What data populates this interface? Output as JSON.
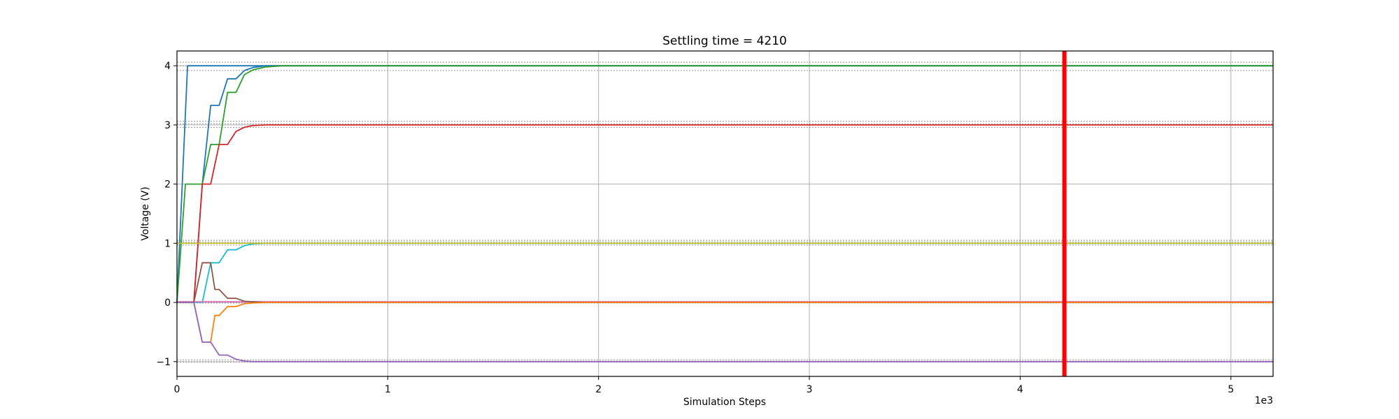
{
  "chart_data": {
    "type": "line",
    "title": "Settling time = 4210",
    "xlabel": "Simulation Steps",
    "ylabel": "Voltage (V)",
    "x_offset_label": "1e3",
    "xlim": [
      0,
      5.2
    ],
    "ylim": [
      -1.25,
      4.25
    ],
    "x_ticks": [
      0,
      1,
      2,
      3,
      4,
      5
    ],
    "y_ticks": [
      -1,
      0,
      1,
      2,
      3,
      4
    ],
    "grid": true,
    "settling_marker": {
      "x": 4.21,
      "color": "#ff0000"
    },
    "tolerance_bands": [
      {
        "value": 4.06,
        "color": "#888888"
      },
      {
        "value": 4.0,
        "color": "#888888"
      },
      {
        "value": 3.92,
        "color": "#888888"
      },
      {
        "value": 3.06,
        "color": "#888888"
      },
      {
        "value": 3.02,
        "color": "#888888"
      },
      {
        "value": 2.96,
        "color": "#888888"
      },
      {
        "value": 1.05,
        "color": "#888888"
      },
      {
        "value": 1.02,
        "color": "#888888"
      },
      {
        "value": 0.97,
        "color": "#888888"
      },
      {
        "value": 0.02,
        "color": "#888888"
      },
      {
        "value": -0.01,
        "color": "#888888"
      },
      {
        "value": -0.97,
        "color": "#888888"
      },
      {
        "value": -1.01,
        "color": "#888888"
      }
    ],
    "series": [
      {
        "color": "#1f77b4",
        "x": [
          0,
          0.05,
          5.2
        ],
        "y": [
          0,
          4.0,
          4.0
        ]
      },
      {
        "color": "#1f77b4",
        "x": [
          0,
          0.08,
          0.12,
          0.16,
          0.2,
          0.24,
          0.28,
          0.32,
          0.36,
          0.42,
          0.5,
          5.2
        ],
        "y": [
          0,
          0,
          2.0,
          3.33,
          3.33,
          3.78,
          3.78,
          3.92,
          3.97,
          4.0,
          4.0,
          4.0
        ]
      },
      {
        "color": "#2ca02c",
        "x": [
          0,
          0.04,
          0.12,
          0.16,
          0.2,
          0.24,
          0.28,
          0.32,
          0.36,
          0.42,
          0.5,
          5.2
        ],
        "y": [
          0,
          2.0,
          2.0,
          2.67,
          2.67,
          3.55,
          3.55,
          3.85,
          3.93,
          3.98,
          4.0,
          4.0
        ]
      },
      {
        "color": "#d62728",
        "x": [
          0,
          0.08,
          0.12,
          0.16,
          0.2,
          0.24,
          0.28,
          0.32,
          0.36,
          0.42,
          0.5,
          5.2
        ],
        "y": [
          0,
          0,
          2.0,
          2.0,
          2.67,
          2.67,
          2.89,
          2.96,
          2.99,
          3.0,
          3.0,
          3.0
        ]
      },
      {
        "color": "#17becf",
        "x": [
          0,
          0.12,
          0.16,
          0.2,
          0.24,
          0.28,
          0.32,
          0.36,
          0.42,
          0.5,
          5.2
        ],
        "y": [
          0,
          0,
          0.67,
          0.67,
          0.89,
          0.89,
          0.96,
          0.99,
          1.0,
          1.0,
          1.0
        ]
      },
      {
        "color": "#bcbd22",
        "x": [
          0,
          0.5,
          5.2
        ],
        "y": [
          1.0,
          1.0,
          1.0
        ]
      },
      {
        "color": "#e377c2",
        "x": [
          0,
          0.5,
          5.2
        ],
        "y": [
          0.01,
          0.01,
          0.01
        ]
      },
      {
        "color": "#8c564b",
        "x": [
          0,
          0.08,
          0.12,
          0.16,
          0.18,
          0.2,
          0.24,
          0.28,
          0.32,
          0.36,
          0.42,
          0.5,
          5.2
        ],
        "y": [
          0,
          0,
          0.67,
          0.67,
          0.22,
          0.22,
          0.07,
          0.07,
          0.02,
          0.01,
          0,
          0,
          0
        ]
      },
      {
        "color": "#ff7f0e",
        "x": [
          0,
          0.08,
          0.12,
          0.16,
          0.18,
          0.2,
          0.24,
          0.28,
          0.32,
          0.36,
          0.42,
          0.5,
          5.2
        ],
        "y": [
          0,
          0,
          -0.67,
          -0.67,
          -0.22,
          -0.22,
          -0.07,
          -0.07,
          -0.02,
          -0.01,
          0,
          0,
          0
        ]
      },
      {
        "color": "#9467bd",
        "x": [
          0,
          0.08,
          0.12,
          0.16,
          0.2,
          0.24,
          0.28,
          0.32,
          0.36,
          0.42,
          0.5,
          5.2
        ],
        "y": [
          0,
          0,
          -0.67,
          -0.67,
          -0.89,
          -0.89,
          -0.96,
          -0.99,
          -1.0,
          -1.0,
          -1.0,
          -1.0
        ]
      }
    ]
  }
}
